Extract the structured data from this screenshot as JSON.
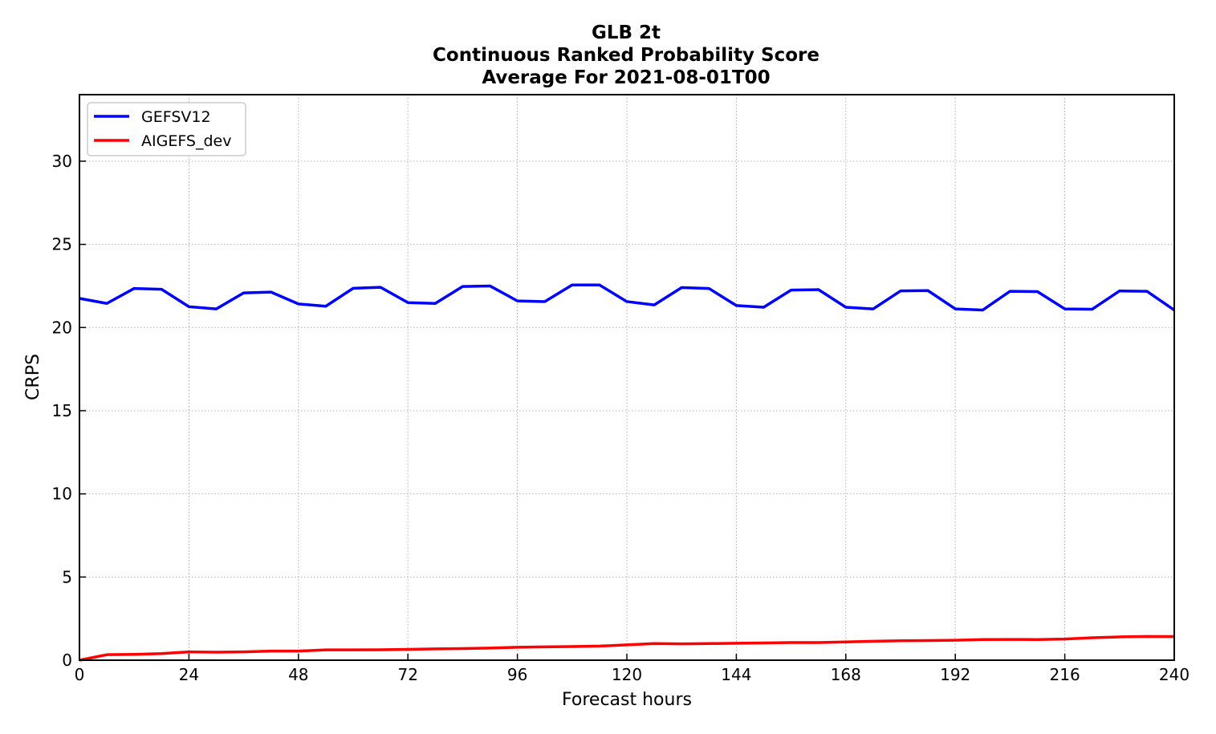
{
  "chart_data": {
    "type": "line",
    "title_lines": [
      "GLB 2t",
      "Continuous Ranked Probability Score",
      "Average For 2021-08-01T00"
    ],
    "xlabel": "Forecast hours",
    "ylabel": "CRPS",
    "xlim": [
      0,
      240
    ],
    "ylim": [
      0,
      34
    ],
    "xticks": [
      0,
      24,
      48,
      72,
      96,
      120,
      144,
      168,
      192,
      216,
      240
    ],
    "yticks": [
      0,
      5,
      10,
      15,
      20,
      25,
      30
    ],
    "grid": true,
    "legend_position": "top-left",
    "x": [
      0,
      6,
      12,
      18,
      24,
      30,
      36,
      42,
      48,
      54,
      60,
      66,
      72,
      78,
      84,
      90,
      96,
      102,
      108,
      114,
      120,
      126,
      132,
      138,
      144,
      150,
      156,
      162,
      168,
      174,
      180,
      186,
      192,
      198,
      204,
      210,
      216,
      222,
      228,
      234,
      240
    ],
    "series": [
      {
        "name": "GEFSV12",
        "color": "#0000ff",
        "values": [
          21.75,
          21.45,
          22.35,
          22.3,
          21.25,
          21.12,
          22.08,
          22.13,
          21.42,
          21.28,
          22.36,
          22.42,
          21.5,
          21.45,
          22.47,
          22.5,
          21.6,
          21.56,
          22.56,
          22.56,
          21.56,
          21.36,
          22.4,
          22.35,
          21.32,
          21.22,
          22.25,
          22.28,
          21.22,
          21.12,
          22.2,
          22.22,
          21.12,
          21.05,
          22.18,
          22.16,
          21.12,
          21.1,
          22.2,
          22.18,
          21.05
        ]
      },
      {
        "name": "AIGEFS_dev",
        "color": "#ff0000",
        "values": [
          0.0,
          0.33,
          0.35,
          0.4,
          0.5,
          0.48,
          0.5,
          0.55,
          0.55,
          0.62,
          0.62,
          0.63,
          0.65,
          0.68,
          0.7,
          0.73,
          0.78,
          0.8,
          0.82,
          0.85,
          0.92,
          1.0,
          0.98,
          1.0,
          1.02,
          1.04,
          1.06,
          1.06,
          1.1,
          1.14,
          1.17,
          1.18,
          1.2,
          1.24,
          1.25,
          1.24,
          1.27,
          1.35,
          1.4,
          1.43,
          1.42
        ]
      }
    ]
  }
}
